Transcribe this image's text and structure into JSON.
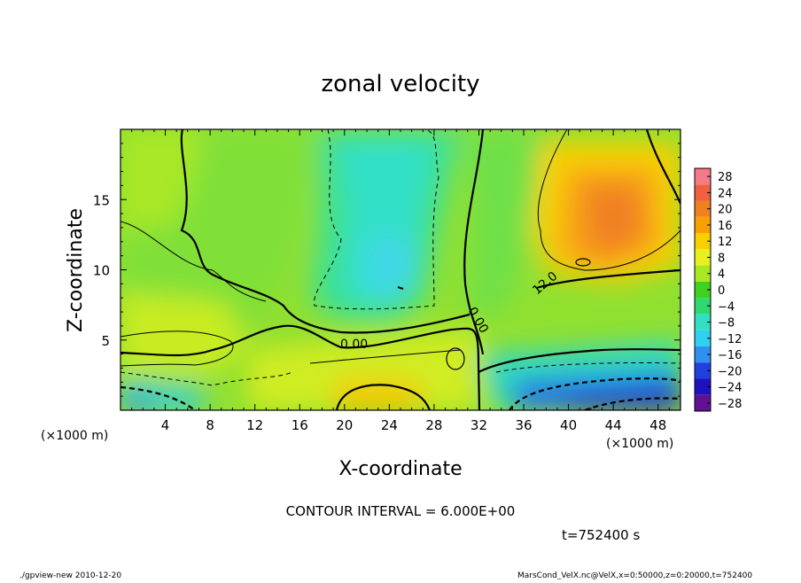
{
  "chart_data": {
    "type": "heatmap",
    "title": "zonal velocity",
    "xlabel": "X-coordinate",
    "ylabel": "Z-coordinate",
    "x_unit": "(×1000 m)",
    "x_unit_right": "(×1000 m)",
    "xlim": [
      0,
      50
    ],
    "ylim": [
      0,
      20
    ],
    "x_ticks": [
      "4",
      "8",
      "12",
      "16",
      "20",
      "24",
      "28",
      "32",
      "36",
      "40",
      "44",
      "48"
    ],
    "y_ticks": [
      "5",
      "10",
      "15"
    ],
    "colorbar": {
      "levels": [
        "28",
        "24",
        "20",
        "16",
        "12",
        "8",
        "4",
        "0",
        "−4",
        "−8",
        "−12",
        "−16",
        "−20",
        "−24",
        "−28"
      ],
      "range": [
        -30,
        30
      ],
      "colors": [
        "#f47a8a",
        "#f06040",
        "#f08020",
        "#f8a000",
        "#f8d000",
        "#e8f020",
        "#a8e820",
        "#40d020",
        "#30d870",
        "#30e0c0",
        "#30d0f0",
        "#3090f0",
        "#2040e0",
        "#2010c0",
        "#601090"
      ]
    },
    "contour_interval_text": "CONTOUR INTERVAL = 6.000E+00",
    "contour_labels": [
      "0.00",
      "0.00",
      "12.0"
    ],
    "field_estimates": [
      {
        "x": 24,
        "z": 9,
        "u": -10
      },
      {
        "x": 43,
        "z": 14,
        "u": 17
      },
      {
        "x": 23,
        "z": 1,
        "u": 12
      },
      {
        "x": 44,
        "z": 1,
        "u": -22
      },
      {
        "x": 3,
        "z": 1,
        "u": -10
      },
      {
        "x": 8,
        "z": 12,
        "u": 2
      },
      {
        "x": 28,
        "z": 6,
        "u": 6
      },
      {
        "x": 36,
        "z": 10,
        "u": 2
      }
    ]
  },
  "time_text": "t=752400 s",
  "footer": {
    "left": "./gpview-new   2010-12-20",
    "right": "MarsCond_VelX.nc@VelX,x=0:50000,z=0:20000,t=752400"
  }
}
